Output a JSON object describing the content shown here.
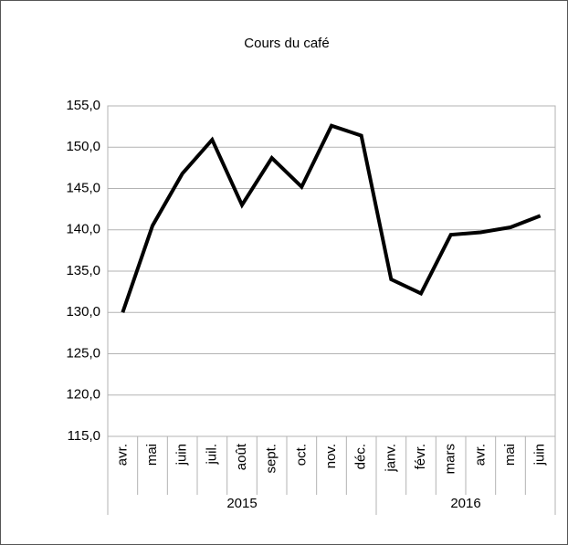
{
  "chart_data": {
    "type": "line",
    "title": "Cours du café",
    "categories": [
      "avr.",
      "mai",
      "juin",
      "juil.",
      "août",
      "sept.",
      "oct.",
      "nov.",
      "déc.",
      "janv.",
      "févr.",
      "mars",
      "avr.",
      "mai",
      "juin"
    ],
    "groups": [
      {
        "label": "2015",
        "count": 9
      },
      {
        "label": "2016",
        "count": 6
      }
    ],
    "series": [
      {
        "name": "Cours du café",
        "color": "#000000",
        "values": [
          130.0,
          140.5,
          146.8,
          150.9,
          143.0,
          148.7,
          145.2,
          152.6,
          151.4,
          134.0,
          132.3,
          139.4,
          139.7,
          140.3,
          141.7
        ]
      }
    ],
    "ylim": [
      115,
      155
    ],
    "yticks": [
      {
        "value": 115,
        "label": "115,0"
      },
      {
        "value": 120,
        "label": "120,0"
      },
      {
        "value": 125,
        "label": "125,0"
      },
      {
        "value": 130,
        "label": "130,0"
      },
      {
        "value": 135,
        "label": "135,0"
      },
      {
        "value": 140,
        "label": "140,0"
      },
      {
        "value": 145,
        "label": "145,0"
      },
      {
        "value": 150,
        "label": "150,0"
      },
      {
        "value": 155,
        "label": "155,0"
      }
    ],
    "grid": true
  }
}
